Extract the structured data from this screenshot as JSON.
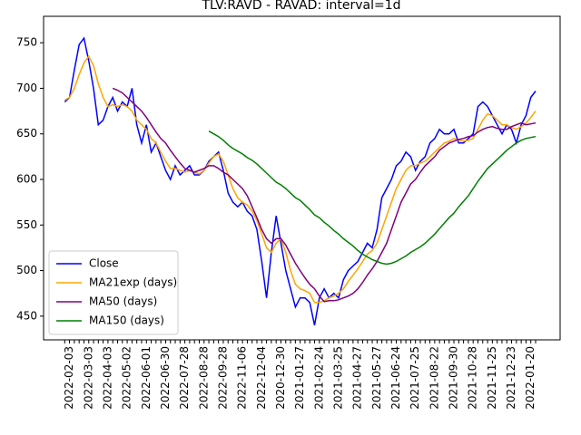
{
  "chart_data": {
    "type": "line",
    "title": "TLV:RAVD - RAVAD: interval=1d",
    "categories": [
      null,
      "2022-02-03",
      null,
      null,
      null,
      "2022-03-03",
      null,
      null,
      null,
      "2022-04-03",
      null,
      null,
      null,
      "2022-05-02",
      null,
      null,
      null,
      "2022-06-01",
      null,
      null,
      null,
      "2022-06-30",
      null,
      null,
      null,
      "2022-07-28",
      null,
      null,
      null,
      "2022-08-28",
      null,
      null,
      null,
      "2022-09-28",
      null,
      null,
      null,
      "2022-11-06",
      null,
      null,
      null,
      "2022-12-04",
      null,
      null,
      null,
      "2020-12-30",
      null,
      null,
      null,
      "2021-01-27",
      null,
      null,
      null,
      "2021-02-24",
      null,
      null,
      null,
      "2021-03-25",
      null,
      null,
      null,
      "2021-04-27",
      null,
      null,
      null,
      "2021-05-27",
      null,
      null,
      null,
      "2021-06-24",
      null,
      null,
      null,
      "2021-07-25",
      null,
      null,
      null,
      "2021-08-22",
      null,
      null,
      null,
      "2021-09-30",
      null,
      null,
      null,
      "2021-10-28",
      null,
      null,
      null,
      "2021-11-25",
      null,
      null,
      null,
      "2021-12-23",
      null,
      null,
      null,
      "2022-01-20",
      null
    ],
    "series": [
      {
        "name": "Close",
        "color": "#0000ff",
        "values": [
          685,
          690,
          720,
          748,
          755,
          730,
          700,
          660,
          665,
          680,
          690,
          675,
          685,
          680,
          700,
          660,
          640,
          660,
          630,
          640,
          625,
          610,
          600,
          615,
          605,
          610,
          615,
          605,
          605,
          610,
          620,
          625,
          630,
          610,
          585,
          575,
          570,
          575,
          565,
          560,
          545,
          510,
          470,
          520,
          560,
          530,
          500,
          480,
          460,
          470,
          470,
          465,
          440,
          470,
          480,
          470,
          475,
          470,
          490,
          500,
          505,
          510,
          520,
          530,
          525,
          545,
          580,
          590,
          600,
          615,
          620,
          630,
          625,
          610,
          620,
          625,
          640,
          645,
          655,
          650,
          650,
          655,
          640,
          640,
          645,
          650,
          680,
          685,
          680,
          670,
          660,
          650,
          660,
          655,
          640,
          660,
          670,
          690,
          697
        ]
      },
      {
        "name": "MA21exp (days)",
        "color": "#ffa500",
        "values": [
          687,
          690,
          700,
          715,
          728,
          735,
          725,
          705,
          690,
          680,
          682,
          680,
          682,
          680,
          675,
          665,
          660,
          655,
          645,
          640,
          630,
          620,
          612,
          612,
          610,
          608,
          610,
          608,
          606,
          610,
          618,
          625,
          628,
          620,
          605,
          590,
          580,
          575,
          572,
          565,
          555,
          540,
          525,
          520,
          530,
          535,
          520,
          500,
          485,
          480,
          478,
          475,
          465,
          465,
          467,
          470,
          472,
          475,
          480,
          488,
          495,
          502,
          510,
          518,
          522,
          530,
          545,
          560,
          575,
          590,
          600,
          610,
          615,
          615,
          618,
          620,
          625,
          630,
          635,
          640,
          642,
          645,
          643,
          642,
          643,
          645,
          655,
          665,
          672,
          670,
          665,
          660,
          660,
          657,
          655,
          658,
          662,
          668,
          675
        ]
      },
      {
        "name": "MA50 (days)",
        "color": "#800080",
        "values": [
          null,
          null,
          null,
          null,
          null,
          null,
          null,
          null,
          null,
          null,
          700,
          698,
          695,
          690,
          685,
          680,
          675,
          668,
          660,
          652,
          645,
          640,
          632,
          625,
          618,
          612,
          610,
          608,
          610,
          612,
          615,
          615,
          612,
          608,
          605,
          600,
          595,
          590,
          582,
          570,
          558,
          545,
          535,
          530,
          535,
          535,
          528,
          518,
          508,
          500,
          492,
          485,
          480,
          472,
          466,
          467,
          467,
          468,
          470,
          472,
          475,
          480,
          487,
          495,
          502,
          510,
          520,
          530,
          545,
          560,
          575,
          585,
          595,
          600,
          608,
          615,
          620,
          625,
          632,
          636,
          640,
          642,
          644,
          645,
          647,
          648,
          652,
          655,
          657,
          658,
          656,
          655,
          655,
          658,
          660,
          662,
          660,
          661,
          662
        ]
      },
      {
        "name": "MA150 (days)",
        "color": "#008000",
        "values": [
          null,
          null,
          null,
          null,
          null,
          null,
          null,
          null,
          null,
          null,
          null,
          null,
          null,
          null,
          null,
          null,
          null,
          null,
          null,
          null,
          null,
          null,
          null,
          null,
          null,
          null,
          null,
          null,
          null,
          null,
          653,
          650,
          647,
          643,
          638,
          634,
          631,
          628,
          624,
          621,
          617,
          612,
          607,
          602,
          597,
          594,
          590,
          585,
          580,
          577,
          572,
          567,
          561,
          558,
          553,
          549,
          544,
          540,
          535,
          531,
          527,
          522,
          518,
          515,
          512,
          510,
          508,
          507,
          508,
          510,
          513,
          516,
          520,
          523,
          526,
          530,
          535,
          540,
          546,
          552,
          558,
          563,
          570,
          576,
          582,
          590,
          598,
          605,
          612,
          617,
          622,
          627,
          632,
          636,
          640,
          643,
          645,
          646,
          647
        ]
      }
    ],
    "ylim": [
      424,
      779
    ],
    "yticks": [
      450,
      500,
      550,
      600,
      650,
      700,
      750
    ],
    "legend": "lower left"
  }
}
